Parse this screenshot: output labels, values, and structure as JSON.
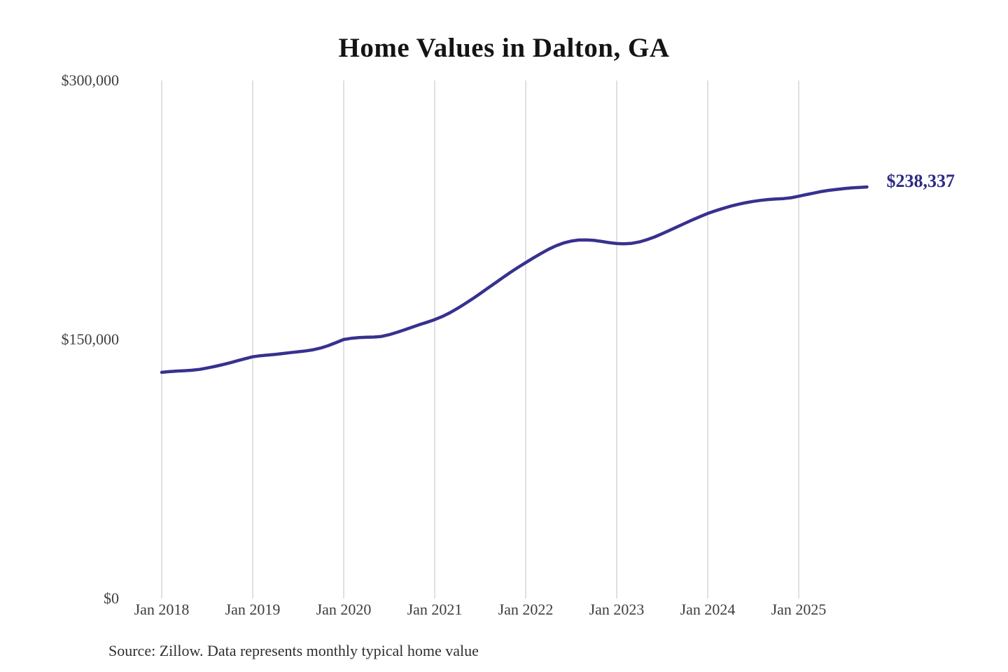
{
  "source_note": "Source: Zillow. Data represents monthly typical home value",
  "colors": {
    "line": "#37318f",
    "end_label_text": "#2e2b86",
    "gridline": "#cccccc",
    "axis_text": "#3e3e3e",
    "title_text": "#141414"
  },
  "chart_data": {
    "type": "line",
    "title": "Home Values in Dalton, GA",
    "xlabel": "",
    "ylabel": "",
    "ylim": [
      0,
      300000
    ],
    "y_tick_values": [
      0,
      150000,
      300000
    ],
    "y_tick_labels": [
      "$0",
      "$150,000",
      "$300,000"
    ],
    "x_tick_labels": [
      "Jan 2018",
      "Jan 2019",
      "Jan 2020",
      "Jan 2021",
      "Jan 2022",
      "Jan 2023",
      "Jan 2024",
      "Jan 2025"
    ],
    "grid": "vertical-only",
    "legend": "none",
    "end_label": "$238,337",
    "end_value": 238337,
    "series": [
      {
        "name": "Monthly typical home value",
        "frequency": "monthly",
        "start_month": "2018-01",
        "end_month": "2025-10",
        "values": [
          131000,
          131400,
          131700,
          131900,
          132200,
          132700,
          133500,
          134400,
          135400,
          136500,
          137700,
          138900,
          140000,
          140600,
          141000,
          141400,
          141900,
          142400,
          142900,
          143400,
          144100,
          145100,
          146500,
          148200,
          150000,
          150700,
          151100,
          151300,
          151400,
          151800,
          152800,
          154100,
          155600,
          157100,
          158600,
          160000,
          161500,
          163300,
          165500,
          168000,
          170700,
          173600,
          176600,
          179700,
          182800,
          185900,
          188900,
          191800,
          194500,
          197200,
          199800,
          202200,
          204300,
          205900,
          207000,
          207600,
          207700,
          207400,
          206800,
          206100,
          205600,
          205400,
          205700,
          206500,
          207800,
          209400,
          211300,
          213300,
          215300,
          217300,
          219300,
          221200,
          223000,
          224500,
          225900,
          227200,
          228300,
          229200,
          230000,
          230600,
          231100,
          231400,
          231600,
          232100,
          233000,
          233900,
          234800,
          235700,
          236400,
          236900,
          237400,
          237800,
          238100,
          238337
        ]
      }
    ]
  }
}
